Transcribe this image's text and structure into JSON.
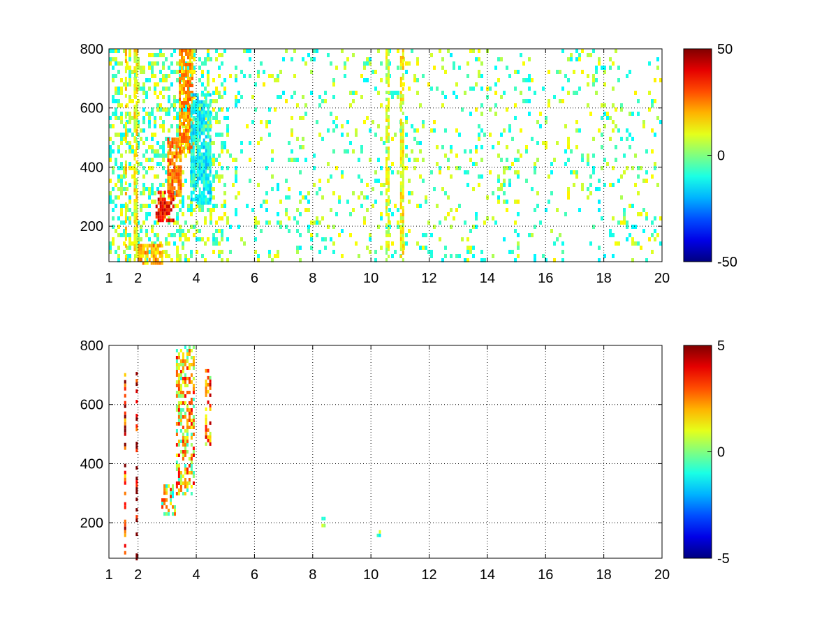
{
  "chart_data": [
    {
      "type": "heatmap",
      "title": "",
      "xlabel": "",
      "ylabel": "",
      "xlim": [
        1,
        20
      ],
      "ylim": [
        80,
        800
      ],
      "x_ticks": [
        "1",
        "2",
        "4",
        "6",
        "8",
        "10",
        "12",
        "14",
        "16",
        "18",
        "20"
      ],
      "y_ticks": [
        "200",
        "400",
        "600",
        "800"
      ],
      "grid": "dotted",
      "colormap": "jet",
      "colorbar": {
        "min": -50,
        "max": 50,
        "ticks": [
          "50",
          "0",
          "-50"
        ]
      },
      "features": [
        {
          "x": [
            1.55,
            1.62
          ],
          "y": [
            80,
            800
          ],
          "value": 14
        },
        {
          "x": [
            1.85,
            1.95
          ],
          "y": [
            80,
            800
          ],
          "value": 12
        },
        {
          "x": [
            2.6,
            3.2
          ],
          "y": [
            220,
            320
          ],
          "value": 36
        },
        {
          "x": [
            3.0,
            3.5
          ],
          "y": [
            300,
            500
          ],
          "value": 25
        },
        {
          "x": [
            3.4,
            3.9
          ],
          "y": [
            450,
            800
          ],
          "value": 22
        },
        {
          "x": [
            2.0,
            2.8
          ],
          "y": [
            80,
            140
          ],
          "value": 20
        },
        {
          "x": [
            3.8,
            4.5
          ],
          "y": [
            280,
            650
          ],
          "value": -12
        },
        {
          "x": [
            11.0,
            11.08
          ],
          "y": [
            80,
            800
          ],
          "value": 12
        },
        {
          "x": [
            10.5,
            10.6
          ],
          "y": [
            80,
            800
          ],
          "value": 8
        }
      ]
    },
    {
      "type": "heatmap",
      "title": "",
      "xlabel": "",
      "ylabel": "",
      "xlim": [
        1,
        20
      ],
      "ylim": [
        80,
        800
      ],
      "x_ticks": [
        "1",
        "2",
        "4",
        "6",
        "8",
        "10",
        "12",
        "14",
        "16",
        "18",
        "20"
      ],
      "y_ticks": [
        "200",
        "400",
        "600",
        "800"
      ],
      "grid": "dotted",
      "colormap": "jet",
      "colorbar": {
        "min": -5,
        "max": 5,
        "ticks": [
          "5",
          "0",
          "-5"
        ]
      },
      "features": [
        {
          "x": [
            1.92,
            1.96
          ],
          "y": [
            80,
            710
          ],
          "value": 5
        },
        {
          "x": [
            1.52,
            1.56
          ],
          "y": [
            100,
            730
          ],
          "value": 4
        },
        {
          "x": [
            2.8,
            3.3
          ],
          "y": [
            230,
            330
          ],
          "value": 1
        },
        {
          "x": [
            3.3,
            3.9
          ],
          "y": [
            300,
            800
          ],
          "value": 1.5
        },
        {
          "x": [
            4.3,
            4.5
          ],
          "y": [
            460,
            720
          ],
          "value": 2
        },
        {
          "x": [
            8.3,
            8.4
          ],
          "y": [
            185,
            220
          ],
          "value": 0.5
        },
        {
          "x": [
            10.2,
            10.3
          ],
          "y": [
            160,
            175
          ],
          "value": 1
        }
      ]
    }
  ]
}
